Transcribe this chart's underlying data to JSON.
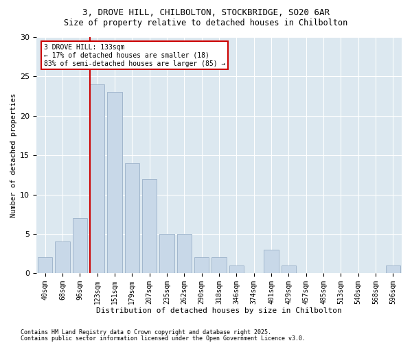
{
  "title_line1": "3, DROVE HILL, CHILBOLTON, STOCKBRIDGE, SO20 6AR",
  "title_line2": "Size of property relative to detached houses in Chilbolton",
  "xlabel": "Distribution of detached houses by size in Chilbolton",
  "ylabel": "Number of detached properties",
  "bar_color": "#c8d8e8",
  "bar_edge_color": "#9ab0c8",
  "background_color": "#ffffff",
  "plot_bg_color": "#dce8f0",
  "categories": [
    "40sqm",
    "68sqm",
    "96sqm",
    "123sqm",
    "151sqm",
    "179sqm",
    "207sqm",
    "235sqm",
    "262sqm",
    "290sqm",
    "318sqm",
    "346sqm",
    "374sqm",
    "401sqm",
    "429sqm",
    "457sqm",
    "485sqm",
    "513sqm",
    "540sqm",
    "568sqm",
    "596sqm"
  ],
  "values": [
    2,
    4,
    7,
    24,
    23,
    14,
    12,
    5,
    5,
    2,
    2,
    1,
    0,
    3,
    1,
    0,
    0,
    0,
    0,
    0,
    1
  ],
  "ylim": [
    0,
    30
  ],
  "yticks": [
    0,
    5,
    10,
    15,
    20,
    25,
    30
  ],
  "property_line_bin": 3,
  "annotation_line1": "3 DROVE HILL: 133sqm",
  "annotation_line2": "← 17% of detached houses are smaller (18)",
  "annotation_line3": "83% of semi-detached houses are larger (85) →",
  "footer_line1": "Contains HM Land Registry data © Crown copyright and database right 2025.",
  "footer_line2": "Contains public sector information licensed under the Open Government Licence v3.0.",
  "grid_color": "#ffffff",
  "annotation_box_facecolor": "#ffffff",
  "annotation_box_edgecolor": "#cc0000",
  "vline_color": "#cc0000",
  "title1_fontsize": 9,
  "title2_fontsize": 8.5,
  "tick_fontsize": 7,
  "ylabel_fontsize": 7.5,
  "xlabel_fontsize": 8,
  "annotation_fontsize": 7,
  "footer_fontsize": 6
}
